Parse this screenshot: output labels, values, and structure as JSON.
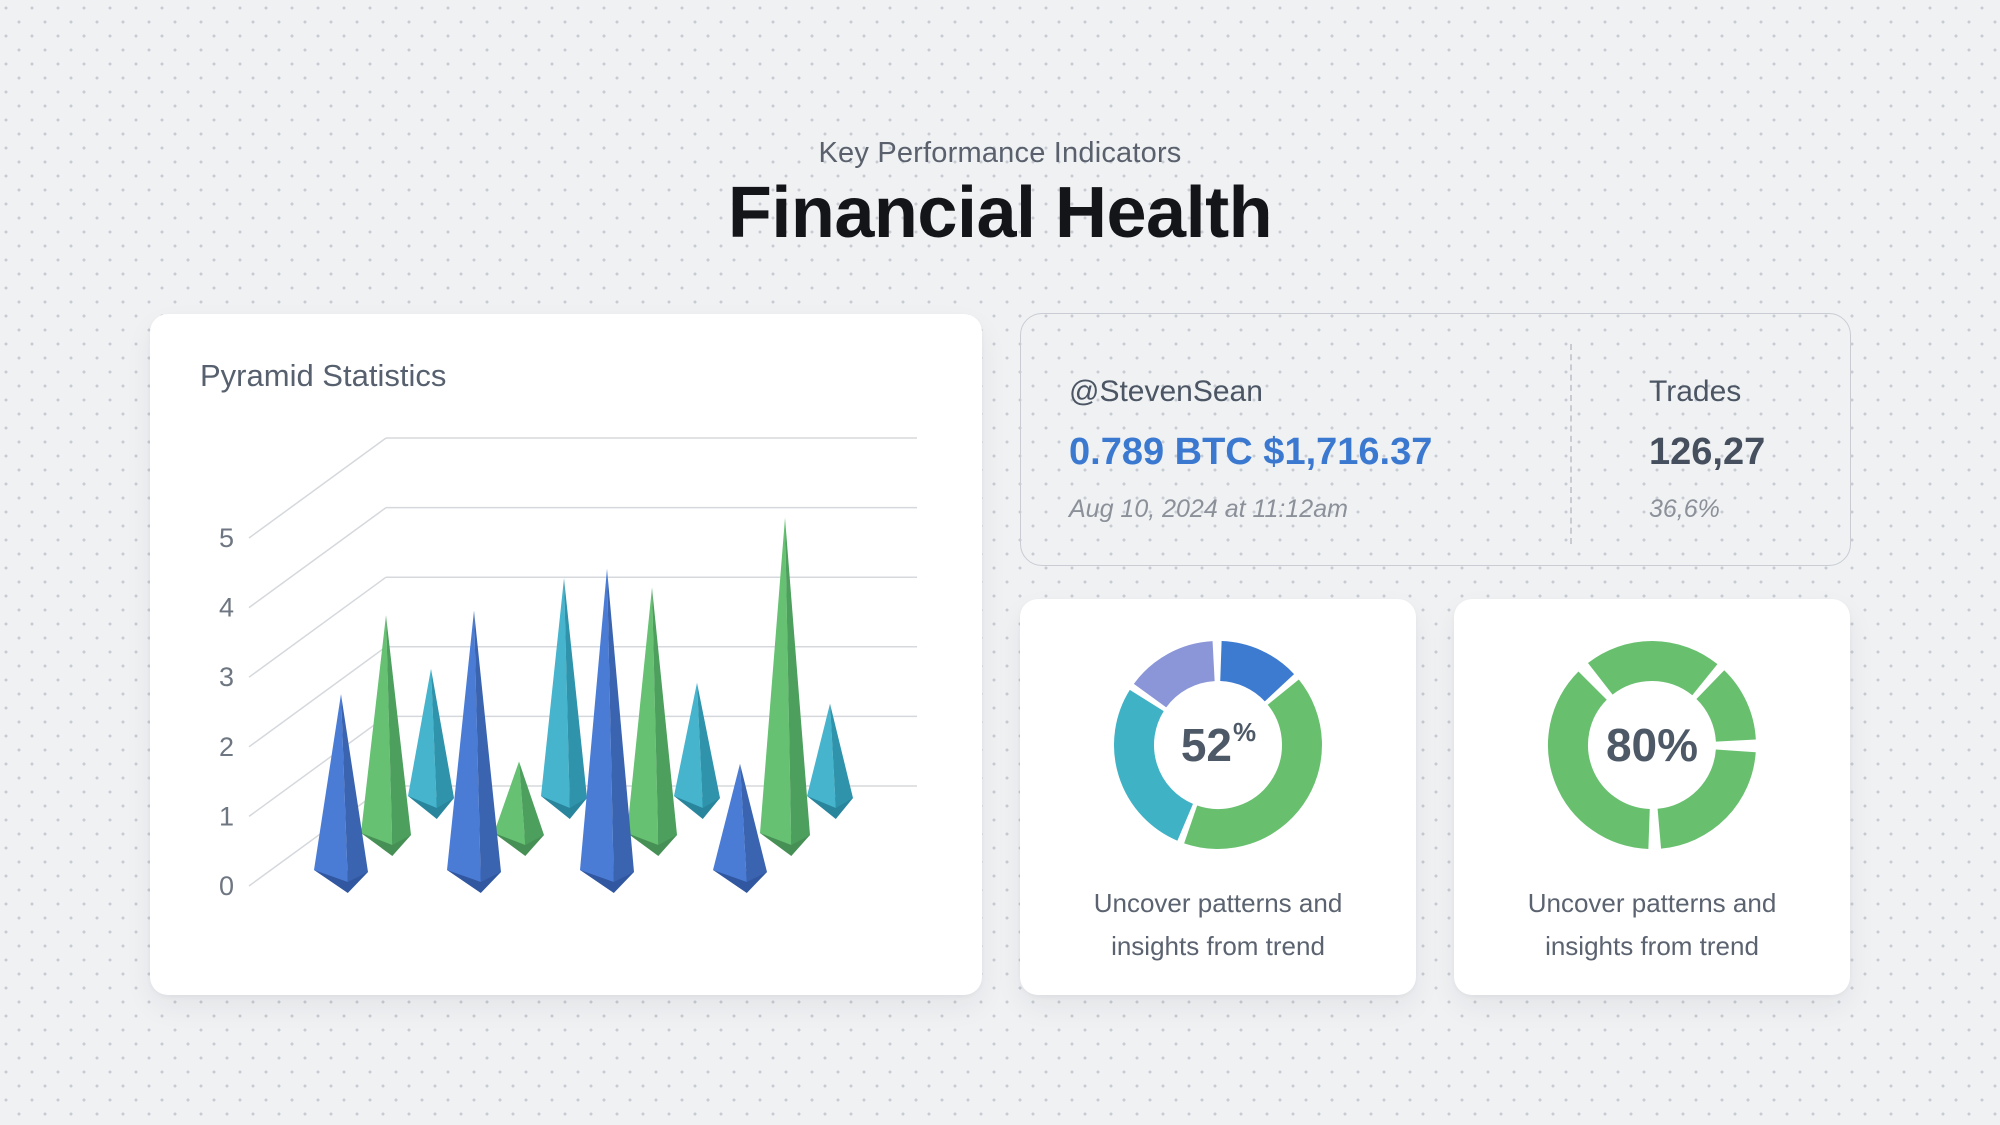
{
  "colors": {
    "background": "#eff1f3",
    "dot": "#c8ccd2",
    "card_border": "#c9cdd3",
    "accent_blue": "#3b79d1",
    "text_title": "#131519",
    "text_slate": "#4b5563",
    "text_muted": "#8b9099"
  },
  "header": {
    "eyebrow": "Key Performance Indicators",
    "title": "Financial Health"
  },
  "chart_card": {
    "title": "Pyramid Statistics"
  },
  "stats_card": {
    "handle": "@StevenSean",
    "amount": "0.789 BTC $1,716.37",
    "timestamp": "Aug 10, 2024 at 11:12am",
    "trades_label": "Trades",
    "trades_value": "126,27",
    "trades_percent": "36,6%"
  },
  "donut_cards": [
    {
      "value_main": "52",
      "value_sup": "%",
      "caption_line1": "Uncover patterns and",
      "caption_line2": "insights from trend"
    },
    {
      "value_main": "80%",
      "value_sup": "",
      "caption_line1": "Uncover patterns and",
      "caption_line2": "insights from trend"
    }
  ],
  "chart_data": [
    {
      "type": "bar",
      "style": "3d-pyramid",
      "title": "Pyramid Statistics",
      "series": [
        {
          "name": "series-blue",
          "color_light": "#4a7cd6",
          "color_dark": "#3a63b0",
          "color_base": "#3157a0",
          "values": [
            2.7,
            3.9,
            4.5,
            1.7
          ]
        },
        {
          "name": "series-green",
          "color_light": "#66c172",
          "color_dark": "#4d9f5d",
          "color_base": "#479055",
          "values": [
            3.3,
            1.2,
            3.7,
            4.7
          ]
        },
        {
          "name": "series-teal",
          "color_light": "#45b4cc",
          "color_dark": "#2e93ab",
          "color_base": "#28859c",
          "values": [
            2.0,
            3.3,
            1.8,
            1.5
          ]
        }
      ],
      "ylim": [
        0,
        5
      ],
      "yticks": [
        0,
        1,
        2,
        3,
        4,
        5
      ],
      "grid": true,
      "legend": false,
      "xlabel": "",
      "ylabel": ""
    },
    {
      "type": "pie",
      "style": "donut",
      "center_label": "52%",
      "segments": [
        {
          "name": "blue",
          "color": "#3d7bd0",
          "start_deg": 2,
          "end_deg": 47
        },
        {
          "name": "green",
          "color": "#68c06f",
          "start_deg": 51,
          "end_deg": 199
        },
        {
          "name": "teal",
          "color": "#3fb2c5",
          "start_deg": 203,
          "end_deg": 302
        },
        {
          "name": "purple",
          "color": "#8b96d8",
          "start_deg": 306,
          "end_deg": 357
        }
      ]
    },
    {
      "type": "pie",
      "style": "donut",
      "center_label": "80%",
      "segments": [
        {
          "name": "green-1",
          "color": "#68c06f",
          "start_deg": 322,
          "end_deg": 399
        },
        {
          "name": "green-2",
          "color": "#68c06f",
          "start_deg": 44,
          "end_deg": 87
        },
        {
          "name": "green-3",
          "color": "#68c06f",
          "start_deg": 94,
          "end_deg": 175
        },
        {
          "name": "green-4",
          "color": "#68c06f",
          "start_deg": 182,
          "end_deg": 315
        }
      ]
    }
  ]
}
